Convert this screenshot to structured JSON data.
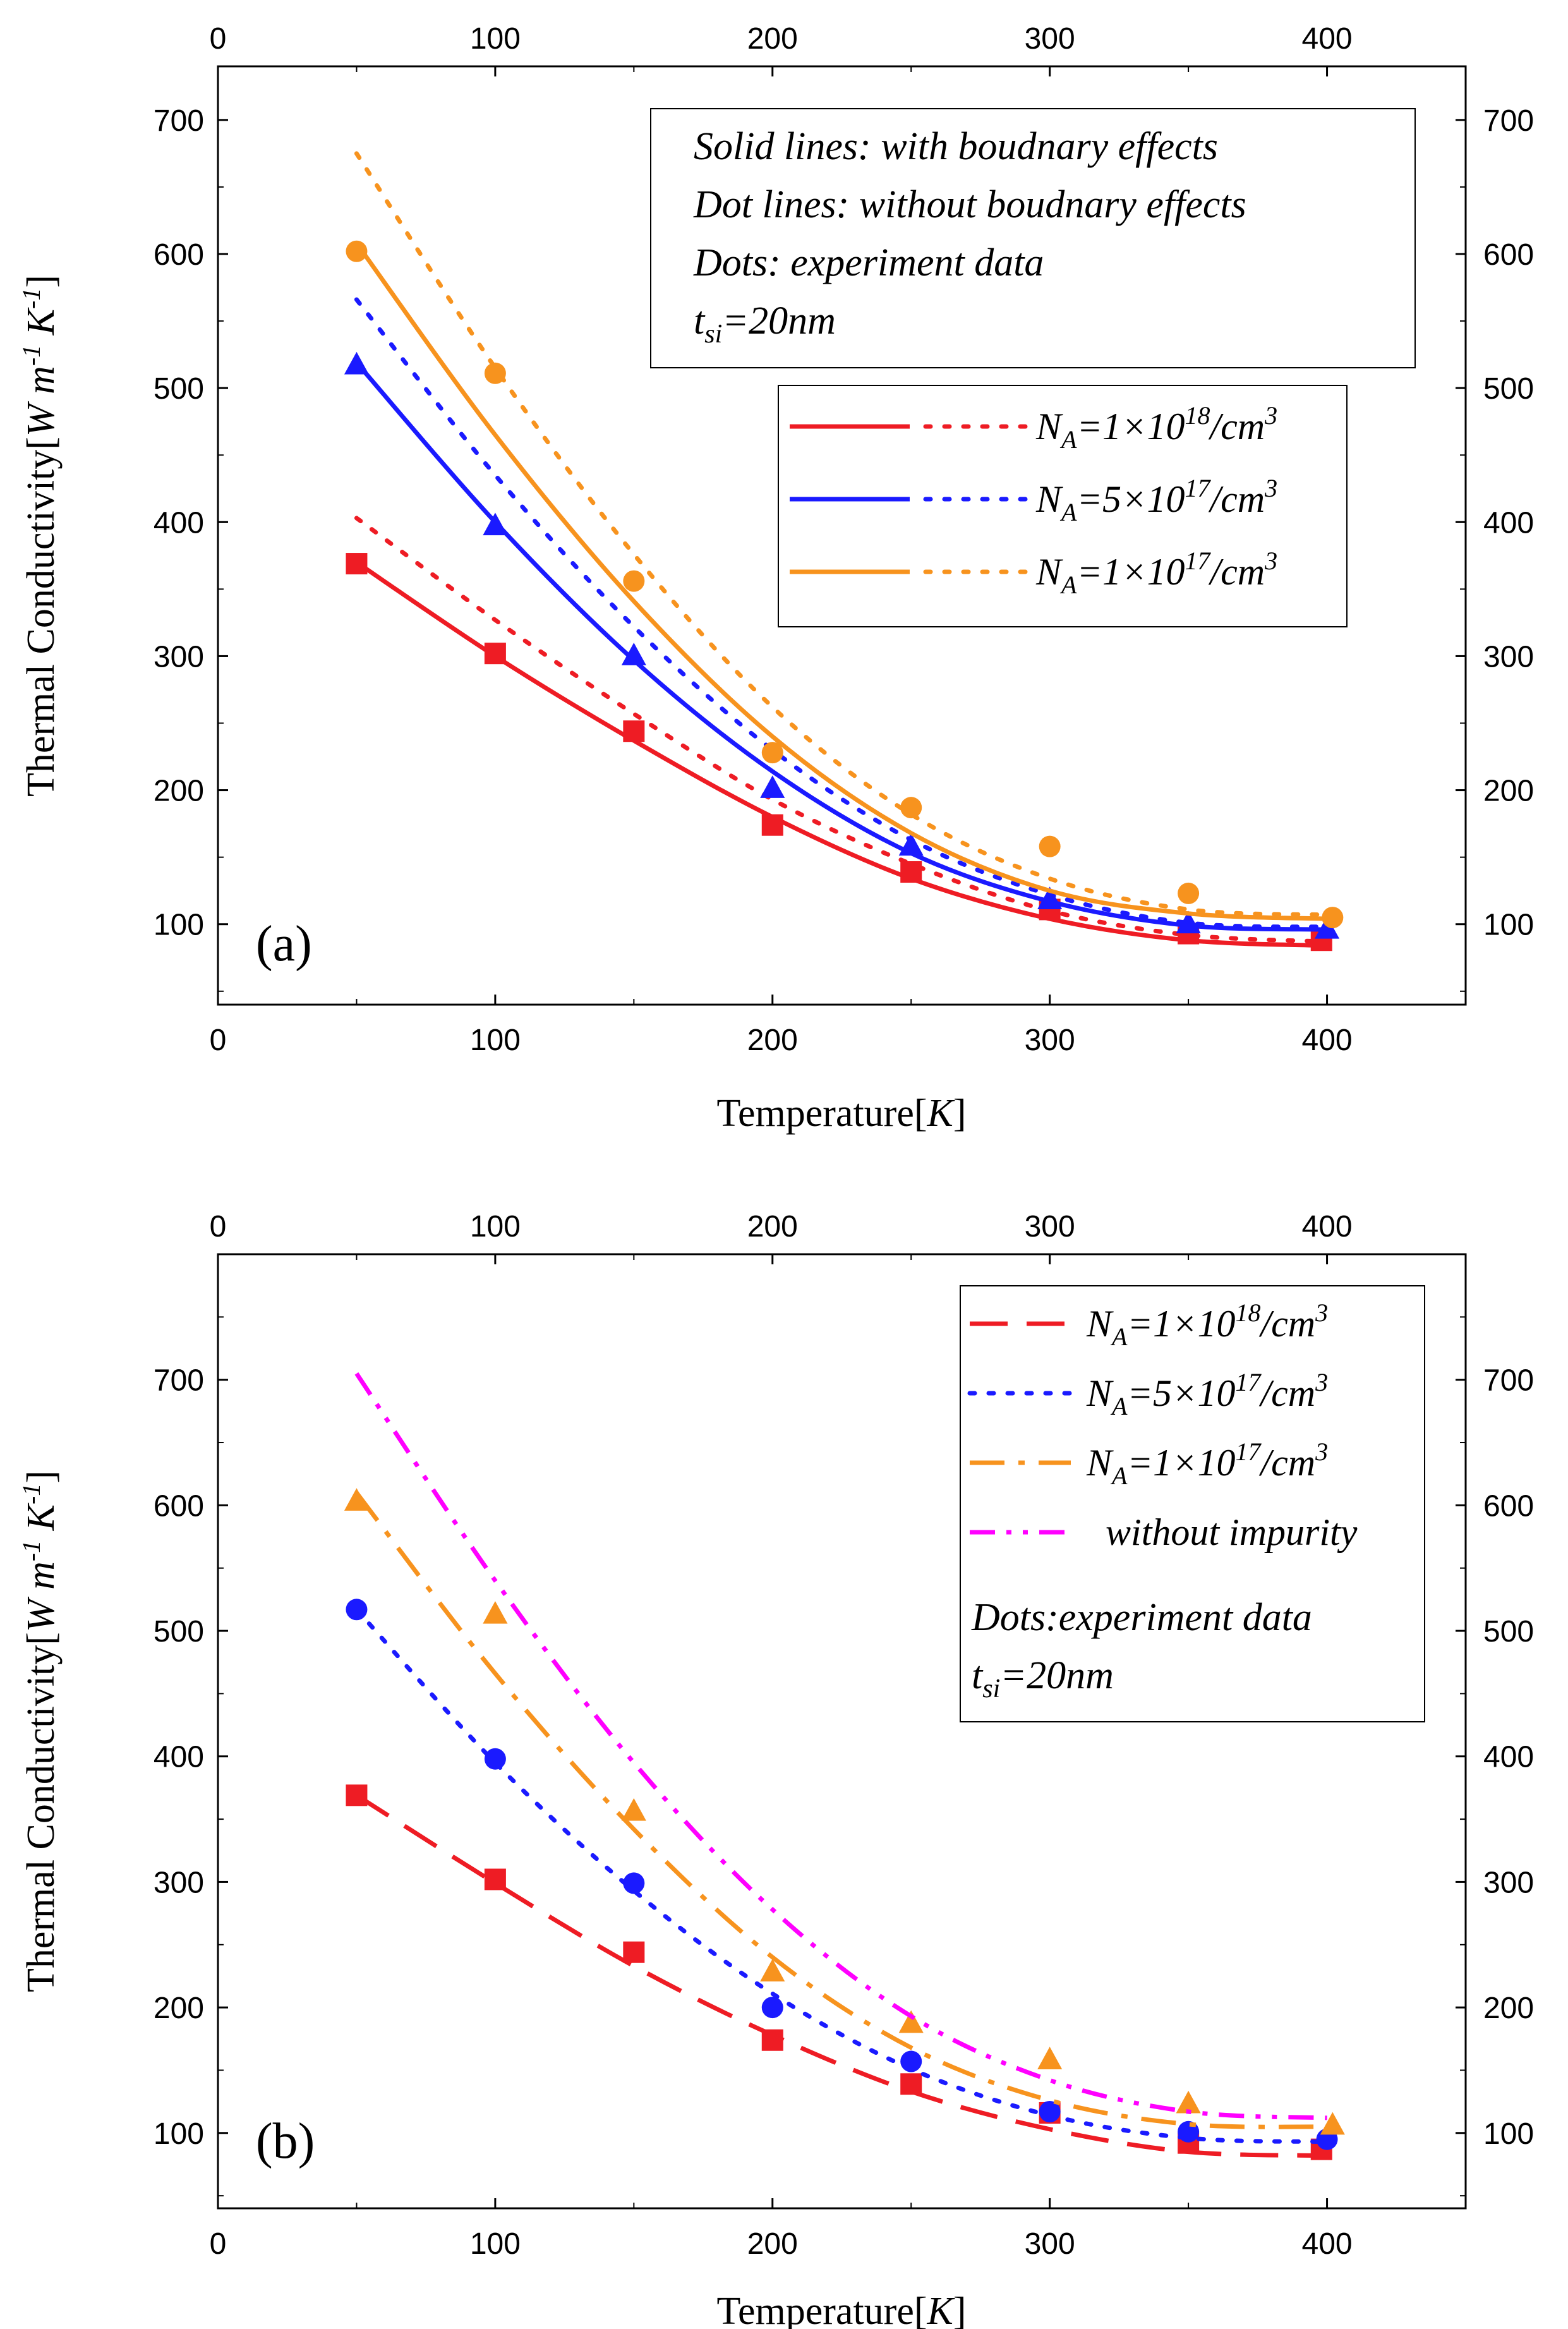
{
  "chart_data": [
    {
      "type": "line",
      "panel_label": "(a)",
      "xlabel": "Temperature[K]",
      "ylabel": "Thermal Conductivity[W m^-1 K^-1]",
      "xlim": [
        0,
        450
      ],
      "ylim": [
        40,
        740
      ],
      "xticks": [
        0,
        100,
        200,
        300,
        400
      ],
      "yticks": [
        100,
        200,
        300,
        400,
        500,
        600,
        700
      ],
      "top_axis_ticks": [
        0,
        100,
        200,
        300,
        400
      ],
      "right_axis_ticks": [
        100,
        200,
        300,
        400,
        500,
        600,
        700
      ],
      "notes": [
        "Solid lines: with boudnary effects",
        "Dot lines: without boudnary effects",
        "Dots: experiment data"
      ],
      "thickness_label": {
        "base": "t",
        "sub": "si",
        "rest": "=20nm"
      },
      "series": [
        {
          "name": "NA=1×10^18/cm^3",
          "legend": {
            "n": "N",
            "sub": "A",
            "pre": "=1×10",
            "sup": "18",
            "post": "/cm",
            "sup2": "3"
          },
          "color": "#ee1c24",
          "marker": "square",
          "exp_x": [
            50,
            100,
            150,
            200,
            250,
            300,
            350,
            398
          ],
          "exp_y": [
            369,
            302,
            244,
            174,
            139,
            111,
            93,
            88
          ],
          "solid_x": [
            50,
            100,
            150,
            200,
            250,
            300,
            350,
            400
          ],
          "solid_y": [
            370,
            300,
            237,
            180,
            134,
            104,
            88,
            84
          ],
          "dotted_x": [
            50,
            100,
            150,
            200,
            250,
            300,
            350,
            400
          ],
          "dotted_y": [
            403,
            327,
            257,
            193,
            145,
            110,
            92,
            87
          ]
        },
        {
          "name": "NA=5×10^17/cm^3",
          "legend": {
            "n": "N",
            "sub": "A",
            "pre": "=5×10",
            "sup": "17",
            "post": "/cm",
            "sup2": "3"
          },
          "color": "#1a1aff",
          "marker": "triangle",
          "exp_x": [
            50,
            100,
            150,
            200,
            250,
            300,
            350,
            400
          ],
          "exp_y": [
            517,
            397,
            300,
            201,
            158,
            118,
            100,
            96
          ],
          "solid_x": [
            50,
            100,
            150,
            200,
            250,
            300,
            350,
            400
          ],
          "solid_y": [
            519,
            400,
            297,
            214,
            153,
            117,
            99,
            96
          ],
          "dotted_x": [
            50,
            100,
            150,
            200,
            250,
            300,
            350,
            400
          ],
          "dotted_y": [
            566,
            435,
            322,
            230,
            163,
            122,
            101,
            98
          ]
        },
        {
          "name": "NA=1×10^17/cm^3",
          "legend": {
            "n": "N",
            "sub": "A",
            "pre": "=1×10",
            "sup": "17",
            "post": "/cm",
            "sup2": "3"
          },
          "color": "#f7931e",
          "marker": "circle",
          "exp_x": [
            50,
            100,
            150,
            200,
            250,
            300,
            350,
            402
          ],
          "exp_y": [
            602,
            511,
            356,
            228,
            187,
            158,
            123,
            105
          ],
          "solid_x": [
            50,
            100,
            150,
            200,
            250,
            300,
            350,
            400
          ],
          "solid_y": [
            608,
            465,
            341,
            240,
            168,
            125,
            108,
            104
          ],
          "dotted_x": [
            50,
            100,
            150,
            200,
            250,
            300,
            350,
            400
          ],
          "dotted_y": [
            675,
            515,
            376,
            262,
            182,
            134,
            111,
            107
          ]
        }
      ]
    },
    {
      "type": "line",
      "panel_label": "(b)",
      "xlabel": "Temperature[K]",
      "ylabel": "Thermal Conductivity[W m^-1 K^-1]",
      "xlim": [
        0,
        450
      ],
      "ylim": [
        40,
        800
      ],
      "xticks": [
        0,
        100,
        200,
        300,
        400
      ],
      "yticks": [
        100,
        200,
        300,
        400,
        500,
        600,
        700
      ],
      "top_axis_ticks": [
        0,
        100,
        200,
        300,
        400
      ],
      "right_axis_ticks": [
        100,
        200,
        300,
        400,
        500,
        600,
        700
      ],
      "notes": [
        "Dots:experiment data"
      ],
      "thickness_label": {
        "base": "t",
        "sub": "si",
        "rest": "=20nm"
      },
      "series": [
        {
          "name": "NA=1×10^18/cm^3",
          "legend": {
            "n": "N",
            "sub": "A",
            "pre": "=1×10",
            "sup": "18",
            "post": "/cm",
            "sup2": "3"
          },
          "color": "#ee1c24",
          "marker": "square",
          "line_style": "dashed",
          "exp_x": [
            50,
            100,
            150,
            200,
            250,
            300,
            350,
            398
          ],
          "exp_y": [
            369,
            302,
            244,
            174,
            139,
            116,
            92,
            87
          ],
          "curve_x": [
            50,
            100,
            150,
            200,
            250,
            300,
            350,
            400
          ],
          "curve_y": [
            369,
            299,
            233,
            178,
            133,
            103,
            85,
            82
          ]
        },
        {
          "name": "NA=5×10^17/cm^3",
          "legend": {
            "n": "N",
            "sub": "A",
            "pre": "=5×10",
            "sup": "17",
            "post": "/cm",
            "sup2": "3"
          },
          "color": "#1a1aff",
          "marker": "circle",
          "line_style": "dotted",
          "exp_x": [
            50,
            100,
            150,
            200,
            250,
            300,
            350,
            400
          ],
          "exp_y": [
            517,
            398,
            299,
            200,
            157,
            117,
            101,
            95
          ],
          "curve_x": [
            50,
            100,
            150,
            200,
            250,
            300,
            350,
            400
          ],
          "curve_y": [
            517,
            395,
            293,
            211,
            151,
            114,
            96,
            93
          ]
        },
        {
          "name": "NA=1×10^17/cm^3",
          "legend": {
            "n": "N",
            "sub": "A",
            "pre": "=1×10",
            "sup": "17",
            "post": "/cm",
            "sup2": "3"
          },
          "color": "#f7931e",
          "marker": "triangle",
          "line_style": "dashdot",
          "exp_x": [
            50,
            100,
            150,
            200,
            250,
            300,
            350,
            402
          ],
          "exp_y": [
            603,
            513,
            356,
            228,
            187,
            158,
            123,
            106
          ],
          "curve_x": [
            50,
            100,
            150,
            200,
            250,
            300,
            350,
            400
          ],
          "curve_y": [
            610,
            466,
            342,
            240,
            168,
            126,
            107,
            105
          ]
        },
        {
          "name": "without impurity",
          "legend": {
            "text": "without impurity"
          },
          "color": "#ff00ff",
          "marker": "none",
          "line_style": "dashdotdot",
          "curve_x": [
            50,
            100,
            150,
            200,
            250,
            300,
            350,
            400
          ],
          "curve_y": [
            705,
            540,
            395,
            278,
            193,
            142,
            117,
            112
          ]
        }
      ]
    }
  ]
}
